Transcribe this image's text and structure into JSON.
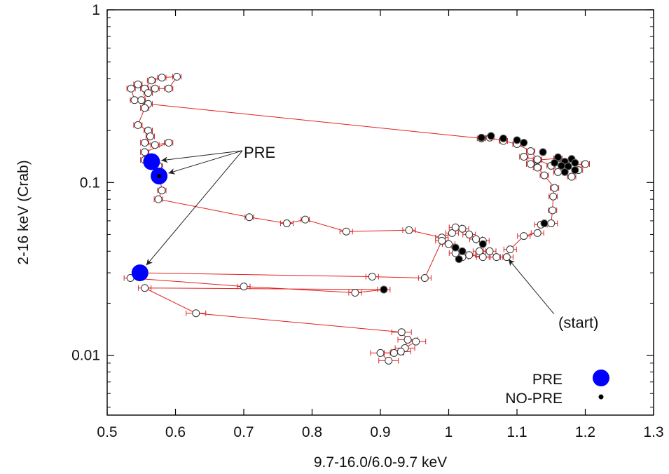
{
  "chart_data": {
    "type": "scatter",
    "title": "",
    "xlabel": "9.7-16.0/6.0-9.7 keV",
    "ylabel": "2-16 keV (Crab)",
    "xlim": [
      0.5,
      1.3
    ],
    "ylim": [
      0.0045,
      1
    ],
    "yscale": "log",
    "xticks": [
      0.5,
      0.6,
      0.7,
      0.8,
      0.9,
      1,
      1.1,
      1.2,
      1.3
    ],
    "xtick_labels": [
      "0.5",
      "0.6",
      "0.7",
      "0.8",
      "0.9",
      "1",
      "1.1",
      "1.2",
      "1.3"
    ],
    "yticks": [
      0.01,
      0.1,
      1
    ],
    "ytick_labels": [
      "0.01",
      "0.1",
      "1"
    ],
    "grid": false,
    "legend_position": "bottom-right",
    "colors": {
      "track": "#e02020",
      "pre": "#0000ff",
      "nopre": "#000000",
      "open_marker": "#ffffff"
    },
    "series": [
      {
        "name": "track",
        "style": "open circles joined by red line with red error bars",
        "points": [
          [
            1.085,
            0.037
          ],
          [
            1.09,
            0.041
          ],
          [
            1.11,
            0.049
          ],
          [
            1.13,
            0.051
          ],
          [
            1.135,
            0.057
          ],
          [
            1.15,
            0.058
          ],
          [
            1.152,
            0.069
          ],
          [
            1.153,
            0.083
          ],
          [
            1.155,
            0.093
          ],
          [
            1.14,
            0.11
          ],
          [
            1.13,
            0.122
          ],
          [
            1.12,
            0.128
          ],
          [
            1.11,
            0.141
          ],
          [
            1.13,
            0.135
          ],
          [
            1.16,
            0.138
          ],
          [
            1.17,
            0.13
          ],
          [
            1.18,
            0.126
          ],
          [
            1.2,
            0.128
          ],
          [
            1.19,
            0.118
          ],
          [
            1.18,
            0.108
          ],
          [
            1.16,
            0.115
          ],
          [
            1.15,
            0.125
          ],
          [
            1.13,
            0.136
          ],
          [
            1.12,
            0.152
          ],
          [
            1.1,
            0.167
          ],
          [
            1.08,
            0.174
          ],
          [
            1.06,
            0.182
          ],
          [
            1.048,
            0.18
          ],
          [
            0.56,
            0.285
          ],
          [
            0.54,
            0.3
          ],
          [
            0.535,
            0.35
          ],
          [
            0.545,
            0.37
          ],
          [
            0.555,
            0.35
          ],
          [
            0.565,
            0.39
          ],
          [
            0.58,
            0.405
          ],
          [
            0.602,
            0.41
          ],
          [
            0.59,
            0.35
          ],
          [
            0.57,
            0.35
          ],
          [
            0.56,
            0.33
          ],
          [
            0.55,
            0.3
          ],
          [
            0.555,
            0.27
          ],
          [
            0.545,
            0.215
          ],
          [
            0.56,
            0.2
          ],
          [
            0.563,
            0.185
          ],
          [
            0.555,
            0.17
          ],
          [
            0.57,
            0.165
          ],
          [
            0.59,
            0.17
          ],
          [
            0.555,
            0.15
          ],
          [
            0.555,
            0.135
          ],
          [
            0.575,
            0.125
          ],
          [
            0.58,
            0.09
          ],
          [
            0.575,
            0.08
          ],
          [
            0.708,
            0.063
          ],
          [
            0.763,
            0.058
          ],
          [
            0.79,
            0.061
          ],
          [
            0.85,
            0.052
          ],
          [
            0.942,
            0.053
          ],
          [
            0.99,
            0.048
          ],
          [
            1.005,
            0.051
          ],
          [
            1.01,
            0.055
          ],
          [
            1.02,
            0.054
          ],
          [
            1.03,
            0.05
          ],
          [
            1.04,
            0.047
          ],
          [
            1.05,
            0.046
          ],
          [
            1.045,
            0.04
          ],
          [
            1.06,
            0.04
          ],
          [
            1.07,
            0.037
          ],
          [
            1.05,
            0.037
          ],
          [
            1.03,
            0.038
          ],
          [
            1.02,
            0.037
          ],
          [
            1.01,
            0.039
          ],
          [
            1,
            0.044
          ],
          [
            0.99,
            0.046
          ],
          [
            0.965,
            0.028
          ],
          [
            0.888,
            0.0285
          ],
          [
            0.548,
            0.03
          ],
          [
            0.534,
            0.028
          ],
          [
            0.7,
            0.025
          ],
          [
            0.863,
            0.023
          ],
          [
            0.905,
            0.024
          ],
          [
            0.555,
            0.0245
          ],
          [
            0.63,
            0.0175
          ],
          [
            0.931,
            0.0136
          ],
          [
            0.94,
            0.0123
          ],
          [
            0.952,
            0.012
          ],
          [
            0.936,
            0.011
          ],
          [
            0.93,
            0.0105
          ],
          [
            0.92,
            0.0103
          ],
          [
            0.9,
            0.0103
          ],
          [
            0.912,
            0.0093
          ]
        ]
      },
      {
        "name": "NO-PRE",
        "style": "filled black circles",
        "points": [
          [
            1.048,
            0.182
          ],
          [
            1.062,
            0.186
          ],
          [
            1.08,
            0.18
          ],
          [
            1.1,
            0.176
          ],
          [
            1.11,
            0.17
          ],
          [
            1.138,
            0.15
          ],
          [
            1.16,
            0.14
          ],
          [
            1.17,
            0.132
          ],
          [
            1.175,
            0.124
          ],
          [
            1.18,
            0.137
          ],
          [
            1.185,
            0.13
          ],
          [
            1.165,
            0.125
          ],
          [
            1.155,
            0.13
          ],
          [
            1.17,
            0.115
          ],
          [
            1.185,
            0.118
          ],
          [
            1.14,
            0.058
          ],
          [
            1.05,
            0.044
          ],
          [
            1.01,
            0.042
          ],
          [
            1.015,
            0.036
          ],
          [
            1.02,
            0.04
          ],
          [
            0.905,
            0.024
          ],
          [
            0.576,
            0.109
          ]
        ]
      },
      {
        "name": "PRE",
        "style": "large filled blue circles",
        "points": [
          [
            0.565,
            0.132
          ],
          [
            0.576,
            0.109
          ],
          [
            0.548,
            0.03
          ]
        ]
      }
    ],
    "annotations": [
      {
        "text": "PRE",
        "label_at": [
          0.7,
          0.15
        ],
        "arrows_to": [
          [
            0.565,
            0.132
          ],
          [
            0.576,
            0.109
          ],
          [
            0.548,
            0.03
          ]
        ]
      },
      {
        "text": "(start)",
        "label_at": [
          1.19,
          0.0155
        ],
        "arrows_to": [
          [
            1.085,
            0.037
          ]
        ]
      }
    ],
    "legend": [
      {
        "label": "PRE",
        "marker": "large-blue-dot"
      },
      {
        "label": "NO-PRE",
        "marker": "small-black-dot"
      }
    ]
  }
}
